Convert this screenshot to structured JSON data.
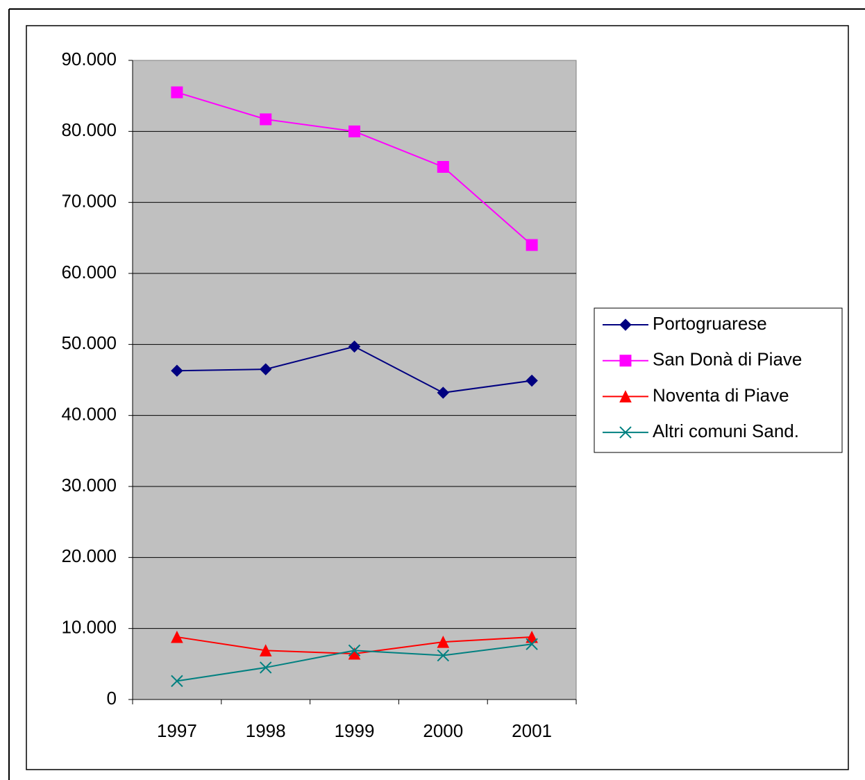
{
  "chart_data": {
    "type": "line",
    "categories": [
      "1997",
      "1998",
      "1999",
      "2000",
      "2001"
    ],
    "series": [
      {
        "name": "Portogruarese",
        "color": "#000080",
        "marker": "diamond",
        "values": [
          46300,
          46500,
          49700,
          43200,
          44900
        ]
      },
      {
        "name": "San Donà di Piave",
        "color": "#ff00ff",
        "marker": "square",
        "values": [
          85500,
          81700,
          80000,
          75000,
          64000
        ]
      },
      {
        "name": "Noventa di Piave",
        "color": "#ff0000",
        "marker": "triangle",
        "values": [
          8800,
          6900,
          6450,
          8100,
          8800
        ]
      },
      {
        "name": "Altri comuni Sand.",
        "color": "#008080",
        "marker": "x",
        "values": [
          2600,
          4500,
          6900,
          6200,
          7800
        ]
      }
    ],
    "ylim": [
      0,
      90000
    ],
    "yticks": [
      0,
      {
        "value": 10000,
        "label": "10.000"
      },
      {
        "value": 20000,
        "label": "20.000"
      },
      {
        "value": 30000,
        "label": "30.000"
      },
      {
        "value": 40000,
        "label": "40.000"
      },
      {
        "value": 50000,
        "label": "50.000"
      },
      {
        "value": 60000,
        "label": "60.000"
      },
      {
        "value": 70000,
        "label": "70.000"
      },
      {
        "value": 80000,
        "label": "80.000"
      },
      {
        "value": 90000,
        "label": "90.000"
      }
    ],
    "grid": true,
    "legend": "right"
  }
}
